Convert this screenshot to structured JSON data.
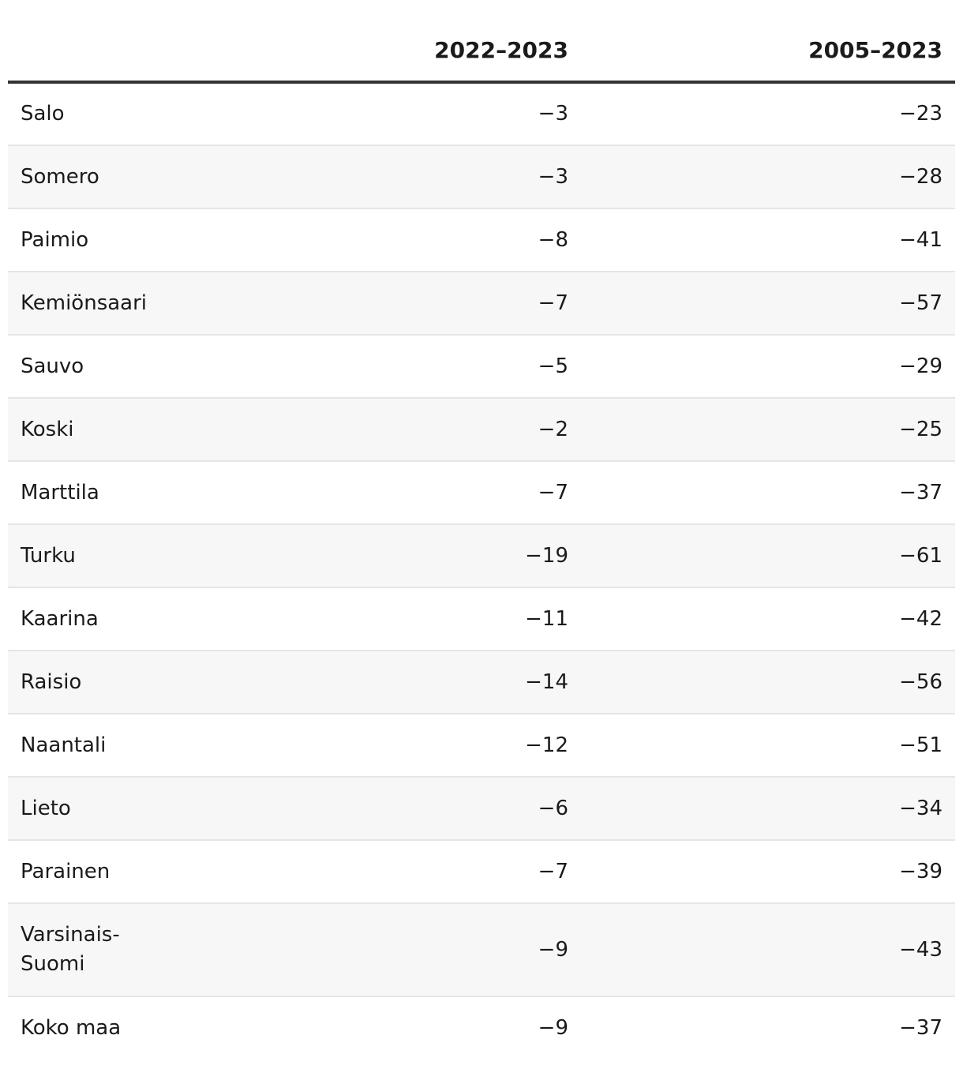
{
  "chart_data": {
    "type": "table",
    "columns": [
      "",
      "2022–2023",
      "2005–2023"
    ],
    "rows": [
      {
        "name": "Salo",
        "v1": "−3",
        "v2": "−23"
      },
      {
        "name": "Somero",
        "v1": "−3",
        "v2": "−28"
      },
      {
        "name": "Paimio",
        "v1": "−8",
        "v2": "−41"
      },
      {
        "name": "Kemiönsaari",
        "v1": "−7",
        "v2": "−57"
      },
      {
        "name": "Sauvo",
        "v1": "−5",
        "v2": "−29"
      },
      {
        "name": "Koski",
        "v1": "−2",
        "v2": "−25"
      },
      {
        "name": "Marttila",
        "v1": "−7",
        "v2": "−37"
      },
      {
        "name": "Turku",
        "v1": "−19",
        "v2": "−61"
      },
      {
        "name": "Kaarina",
        "v1": "−11",
        "v2": "−42"
      },
      {
        "name": "Raisio",
        "v1": "−14",
        "v2": "−56"
      },
      {
        "name": "Naantali",
        "v1": "−12",
        "v2": "−51"
      },
      {
        "name": "Lieto",
        "v1": "−6",
        "v2": "−34"
      },
      {
        "name": "Parainen",
        "v1": "−7",
        "v2": "−39"
      },
      {
        "name": "Varsinais-Suomi",
        "v1": "−9",
        "v2": "−43"
      },
      {
        "name": "Koko maa",
        "v1": "−9",
        "v2": "−37"
      }
    ]
  },
  "colors": {
    "header_rule": "#333333",
    "row_rule": "#e6e6e6",
    "stripe": "#f7f7f7",
    "text": "#1a1a1a"
  }
}
